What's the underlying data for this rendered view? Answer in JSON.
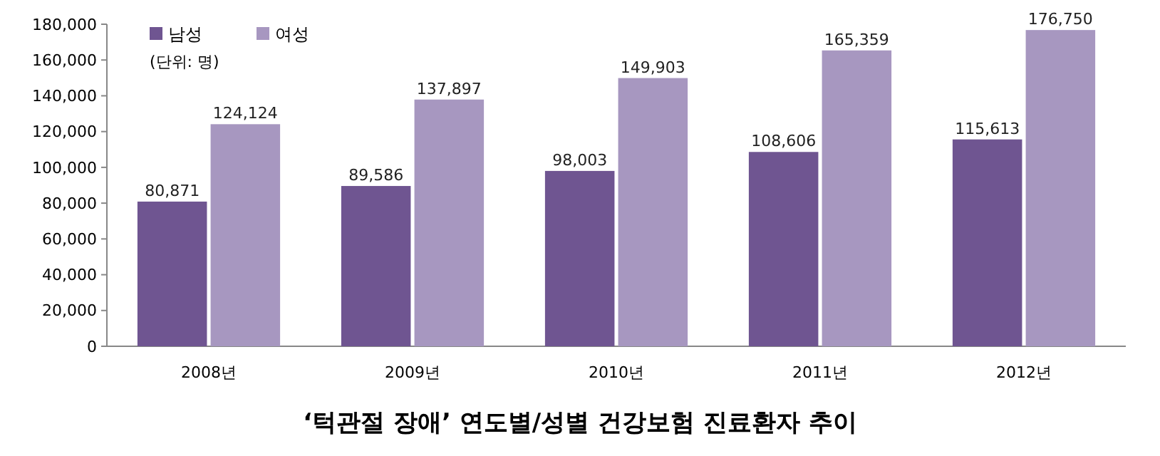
{
  "chart_data": {
    "type": "bar",
    "title": "‘턱관절 장애’ 연도별/성별 건강보험 진료환자 추이",
    "annotations": [
      "(단위: 명)"
    ],
    "categories": [
      "2008년",
      "2009년",
      "2010년",
      "2011년",
      "2012년"
    ],
    "series": [
      {
        "name": "남성",
        "color": "#6f5591",
        "values": [
          80871,
          89586,
          98003,
          108606,
          115613
        ],
        "value_labels": [
          "80,871",
          "89,586",
          "98,003",
          "108,606",
          "115,613"
        ]
      },
      {
        "name": "여성",
        "color": "#a797c0",
        "values": [
          124124,
          137897,
          149903,
          165359,
          176750
        ],
        "value_labels": [
          "124,124",
          "137,897",
          "149,903",
          "165,359",
          "176,750"
        ]
      }
    ],
    "ylim": [
      0,
      180000
    ],
    "yticks": [
      {
        "value": 0,
        "label": "0"
      },
      {
        "value": 20000,
        "label": "20,000"
      },
      {
        "value": 40000,
        "label": "40,000"
      },
      {
        "value": 60000,
        "label": "60,000"
      },
      {
        "value": 80000,
        "label": "80,000"
      },
      {
        "value": 100000,
        "label": "100,000"
      },
      {
        "value": 120000,
        "label": "120,000"
      },
      {
        "value": 140000,
        "label": "140,000"
      },
      {
        "value": 160000,
        "label": "160,000"
      },
      {
        "value": 180000,
        "label": "180,000"
      }
    ],
    "grid": false,
    "legend": "top left"
  }
}
